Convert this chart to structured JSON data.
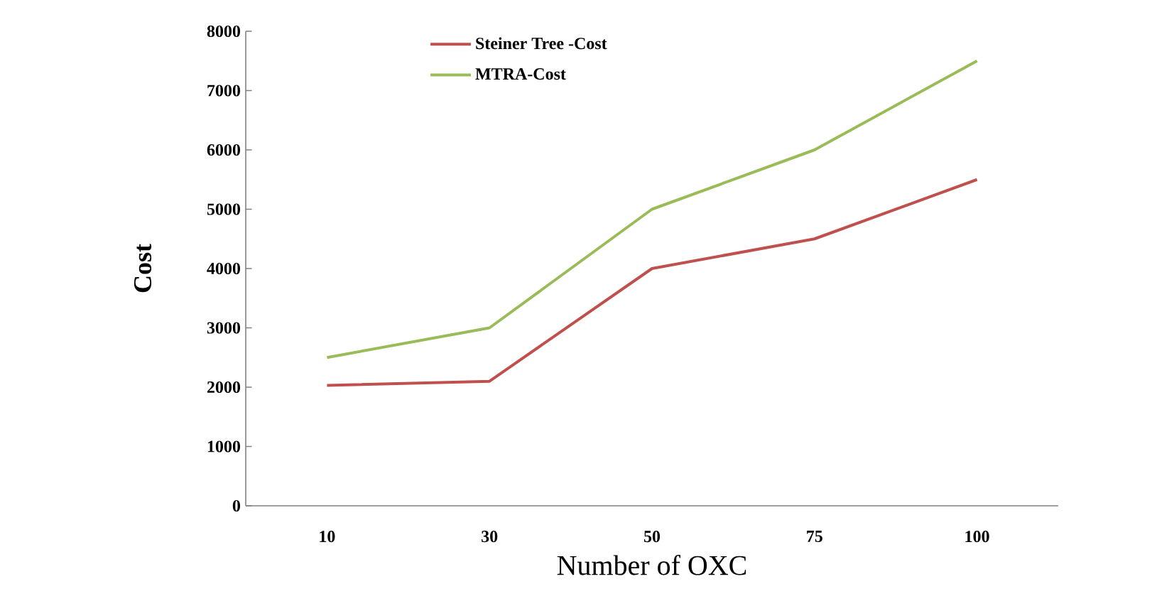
{
  "chart_data": {
    "type": "line",
    "xlabel": "Number of OXC",
    "ylabel": "Cost",
    "categories": [
      "10",
      "30",
      "50",
      "75",
      "100"
    ],
    "series": [
      {
        "name": "Steiner Tree -Cost",
        "color": "#c0504d",
        "values": [
          2030,
          2100,
          4000,
          4500,
          5500
        ]
      },
      {
        "name": "MTRA-Cost",
        "color": "#9bbb59",
        "values": [
          2500,
          3000,
          5000,
          6000,
          7500
        ]
      }
    ],
    "ylim": [
      0,
      8000
    ],
    "yticks": [
      0,
      1000,
      2000,
      3000,
      4000,
      5000,
      6000,
      7000,
      8000
    ],
    "grid": false,
    "legend": "top",
    "marker": "none",
    "line_style": "solid"
  }
}
